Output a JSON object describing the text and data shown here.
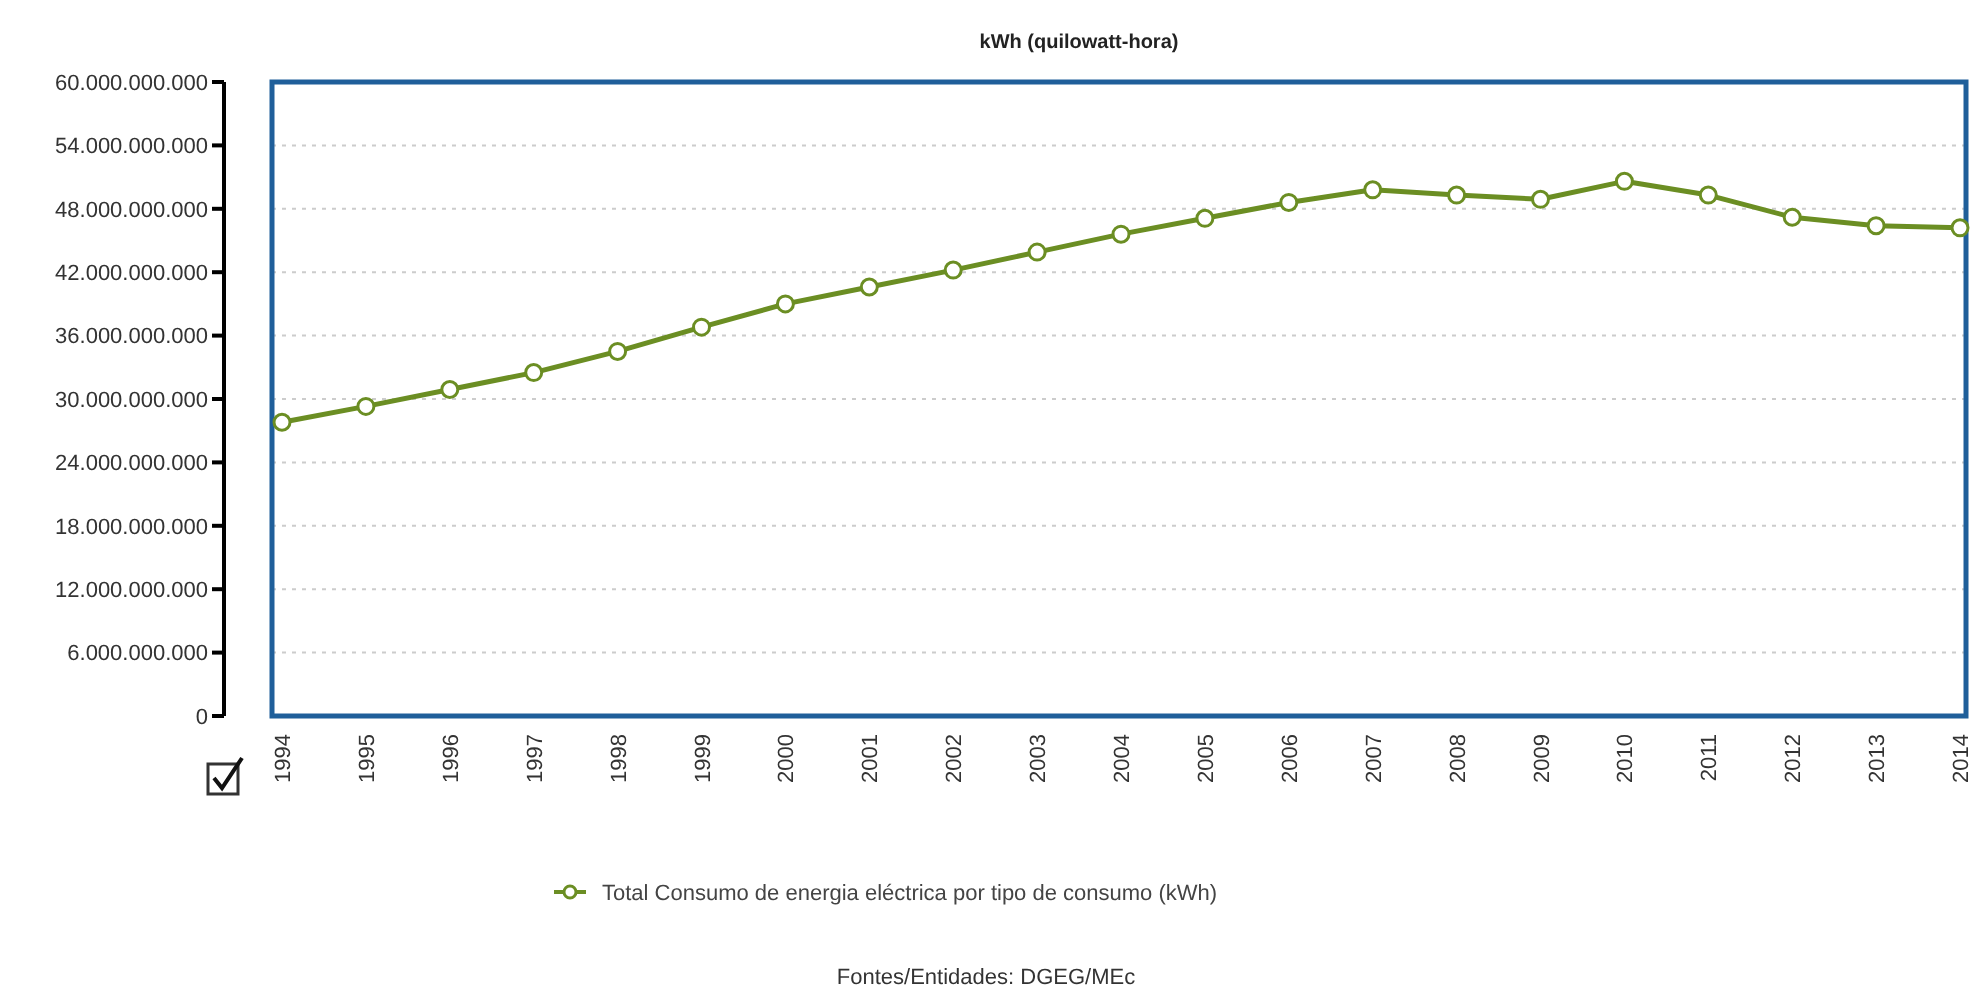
{
  "chart_data": {
    "type": "line",
    "title": "kWh (quilowatt-hora)",
    "categories": [
      "1994",
      "1995",
      "1996",
      "1997",
      "1998",
      "1999",
      "2000",
      "2001",
      "2002",
      "2003",
      "2004",
      "2005",
      "2006",
      "2007",
      "2008",
      "2009",
      "2010",
      "2011",
      "2012",
      "2013",
      "2014"
    ],
    "series": [
      {
        "name": "Total Consumo de energia eléctrica por tipo de consumo (kWh)",
        "color": "#6b8e23",
        "values": [
          27800000000,
          29300000000,
          30900000000,
          32500000000,
          34500000000,
          36800000000,
          39000000000,
          40600000000,
          42200000000,
          43900000000,
          45600000000,
          47100000000,
          48600000000,
          49800000000,
          49300000000,
          48900000000,
          50600000000,
          49300000000,
          47200000000,
          46400000000,
          46200000000
        ]
      }
    ],
    "ylim": [
      0,
      60000000000
    ],
    "yticks": [
      {
        "value": 0,
        "label": "0"
      },
      {
        "value": 6000000000,
        "label": "6.000.000.000"
      },
      {
        "value": 12000000000,
        "label": "12.000.000.000"
      },
      {
        "value": 18000000000,
        "label": "18.000.000.000"
      },
      {
        "value": 24000000000,
        "label": "24.000.000.000"
      },
      {
        "value": 30000000000,
        "label": "30.000.000.000"
      },
      {
        "value": 36000000000,
        "label": "36.000.000.000"
      },
      {
        "value": 42000000000,
        "label": "42.000.000.000"
      },
      {
        "value": 48000000000,
        "label": "48.000.000.000"
      },
      {
        "value": 54000000000,
        "label": "54.000.000.000"
      },
      {
        "value": 60000000000,
        "label": "60.000.000.000"
      }
    ],
    "grid": "y",
    "legend": "bottom",
    "marker": "circle",
    "line_style": "solid",
    "annotations": [
      "Fontes/Entidades: DGEG/MEc"
    ]
  }
}
